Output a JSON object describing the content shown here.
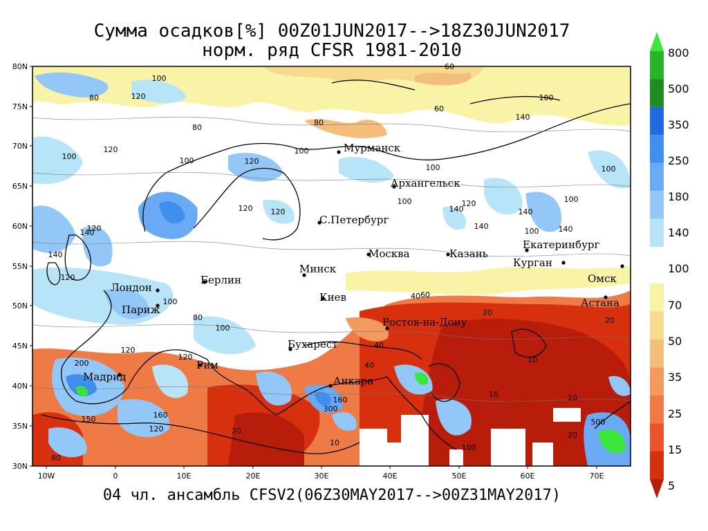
{
  "title_line1": "Сумма осадков[%] 00Z01JUN2017-->18Z30JUN2017",
  "title_line2": "норм. ряд CFSR 1981-2010",
  "footer": "04 чл. ансамбль CFSV2(06Z30MAY2017-->00Z31MAY2017)",
  "axes": {
    "lat_labels": [
      "80N",
      "75N",
      "70N",
      "65N",
      "60N",
      "55N",
      "50N",
      "45N",
      "40N",
      "35N",
      "30N"
    ],
    "lon_labels": [
      "10W",
      "0",
      "10E",
      "20E",
      "30E",
      "40E",
      "50E",
      "60E",
      "70E"
    ]
  },
  "colorbar": {
    "levels": [
      "800",
      "500",
      "350",
      "250",
      "180",
      "140",
      "100",
      "70",
      "50",
      "35",
      "25",
      "15",
      "5"
    ],
    "upper_colors": [
      "#3ae63a",
      "#28b428",
      "#1e8c1e",
      "#1e6be0",
      "#3f8fee",
      "#6aaaf4",
      "#93c7f7",
      "#b8e4f8"
    ],
    "lower_colors": [
      "#f8f3a6",
      "#f7da8c",
      "#f5bd7a",
      "#f39a5e",
      "#ee7a45",
      "#e8552d",
      "#d7300f",
      "#b81c0a"
    ]
  },
  "cities": [
    {
      "name": "Мурманск"
    },
    {
      "name": "Архангельск"
    },
    {
      "name": "С.Петербург"
    },
    {
      "name": "Москва"
    },
    {
      "name": "Казань"
    },
    {
      "name": "Екатеринбург"
    },
    {
      "name": "Курган"
    },
    {
      "name": "Омск"
    },
    {
      "name": "Астана"
    },
    {
      "name": "Минск"
    },
    {
      "name": "Киев"
    },
    {
      "name": "Берлин"
    },
    {
      "name": "Лондон"
    },
    {
      "name": "Париж"
    },
    {
      "name": "Ростов-на-Дону"
    },
    {
      "name": "Бухарест"
    },
    {
      "name": "Рим"
    },
    {
      "name": "Мадрид"
    },
    {
      "name": "Анкара"
    }
  ],
  "contour_labels": [
    "100",
    "80",
    "120",
    "60",
    "140",
    "20",
    "40",
    "10",
    "200",
    "160",
    "300",
    "500",
    "150"
  ]
}
